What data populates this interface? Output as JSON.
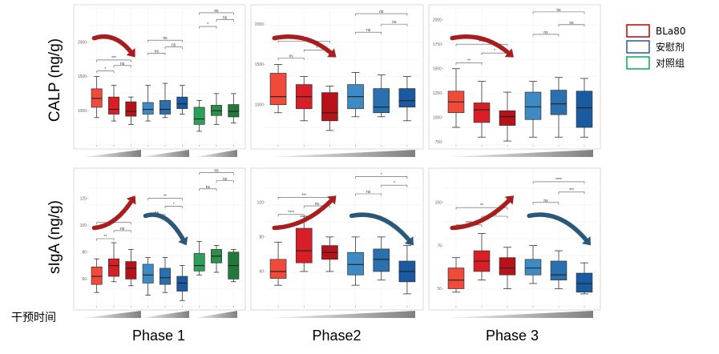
{
  "axis_labels": {
    "top": "CALP (ng/g)",
    "bottom": "sIgA (ng/g)"
  },
  "phases": [
    "Phase 1",
    "Phase2",
    "Phase 3"
  ],
  "legend": [
    {
      "label": "BLa80",
      "color": "#c00000"
    },
    {
      "label": "安慰剂",
      "color": "#2f5597"
    },
    {
      "label": "对照组",
      "color": "#00b050"
    }
  ],
  "intervention_label": "干预时间",
  "colors": {
    "red_light": "#f04a3a",
    "red_mid": "#d81e26",
    "red_dark": "#b51219",
    "blue_light": "#3d8ac4",
    "blue_mid": "#2a6fae",
    "blue_dark": "#1a5aa0",
    "green_light": "#2ca05a",
    "green_mid": "#2b8f48",
    "green_dark": "#217a3a",
    "arrow_red": "#a81d1d",
    "arrow_blue": "#2a5878"
  },
  "chart_data": [
    {
      "id": "calp-phase1",
      "type": "box",
      "ylim": [
        500,
        2500
      ],
      "yticks": [
        1000,
        1500,
        2000
      ],
      "boxes": [
        {
          "color": "red_light",
          "min": 900,
          "q1": 1050,
          "median": 1180,
          "q3": 1320,
          "max": 1500
        },
        {
          "color": "red_mid",
          "min": 850,
          "q1": 950,
          "median": 1020,
          "q3": 1200,
          "max": 1370
        },
        {
          "color": "red_dark",
          "min": 800,
          "q1": 920,
          "median": 990,
          "q3": 1130,
          "max": 1200
        },
        {
          "color": "blue_light",
          "min": 850,
          "q1": 950,
          "median": 1020,
          "q3": 1120,
          "max": 1370
        },
        {
          "color": "blue_mid",
          "min": 900,
          "q1": 950,
          "median": 1020,
          "q3": 1150,
          "max": 1400
        },
        {
          "color": "blue_dark",
          "min": 950,
          "q1": 1030,
          "median": 1100,
          "q3": 1200,
          "max": 1370
        },
        {
          "color": "green_light",
          "min": 700,
          "q1": 800,
          "median": 880,
          "q3": 1050,
          "max": 1150
        },
        {
          "color": "green_mid",
          "min": 800,
          "q1": 930,
          "median": 1000,
          "q3": 1080,
          "max": 1250
        },
        {
          "color": "green_dark",
          "min": 820,
          "q1": 910,
          "median": 990,
          "q3": 1090,
          "max": 1250
        }
      ],
      "sig": [
        {
          "a": 0,
          "b": 1,
          "label": "*",
          "y": 1580
        },
        {
          "a": 1,
          "b": 2,
          "label": "ns",
          "y": 1660
        },
        {
          "a": 0,
          "b": 2,
          "label": "***",
          "y": 1740
        },
        {
          "a": 3,
          "b": 4,
          "label": "ns",
          "y": 1840
        },
        {
          "a": 4,
          "b": 5,
          "label": "ns",
          "y": 1930
        },
        {
          "a": 3,
          "b": 5,
          "label": "ns",
          "y": 2030
        },
        {
          "a": 6,
          "b": 7,
          "label": "*",
          "y": 2230
        },
        {
          "a": 7,
          "b": 8,
          "label": "ns",
          "y": 2330
        },
        {
          "a": 6,
          "b": 8,
          "label": "ns",
          "y": 2430
        }
      ],
      "arrows": [
        {
          "dir": "down",
          "color": "arrow_red",
          "from": 0,
          "to": 2
        }
      ]
    },
    {
      "id": "calp-phase2",
      "type": "box",
      "ylim": [
        500,
        2200
      ],
      "yticks": [
        1000,
        1500,
        2000
      ],
      "boxes": [
        {
          "color": "red_light",
          "min": 900,
          "q1": 1000,
          "median": 1100,
          "q3": 1390,
          "max": 1500
        },
        {
          "color": "red_mid",
          "min": 800,
          "q1": 950,
          "median": 1100,
          "q3": 1250,
          "max": 1350
        },
        {
          "color": "red_dark",
          "min": 680,
          "q1": 800,
          "median": 900,
          "q3": 1150,
          "max": 1230
        },
        {
          "color": "blue_light",
          "min": 850,
          "q1": 950,
          "median": 1100,
          "q3": 1250,
          "max": 1400
        },
        {
          "color": "blue_mid",
          "min": 850,
          "q1": 900,
          "median": 970,
          "q3": 1200,
          "max": 1370
        },
        {
          "color": "blue_dark",
          "min": 800,
          "q1": 970,
          "median": 1050,
          "q3": 1200,
          "max": 1350
        }
      ],
      "sig": [
        {
          "a": 0,
          "b": 1,
          "label": "ns",
          "y": 1580
        },
        {
          "a": 1,
          "b": 2,
          "label": "*",
          "y": 1680
        },
        {
          "a": 0,
          "b": 2,
          "label": "**",
          "y": 1790
        },
        {
          "a": 3,
          "b": 4,
          "label": "ns",
          "y": 1900
        },
        {
          "a": 4,
          "b": 5,
          "label": "ns",
          "y": 2000
        },
        {
          "a": 3,
          "b": 5,
          "label": "ns",
          "y": 2130
        }
      ],
      "arrows": [
        {
          "dir": "down",
          "color": "arrow_red",
          "from": 0,
          "to": 2
        }
      ]
    },
    {
      "id": "calp-phase3",
      "type": "box",
      "ylim": [
        720,
        2120
      ],
      "yticks": [
        750,
        1000,
        1250,
        1500,
        1750,
        2000
      ],
      "boxes": [
        {
          "color": "red_light",
          "min": 900,
          "q1": 1050,
          "median": 1160,
          "q3": 1270,
          "max": 1500
        },
        {
          "color": "red_mid",
          "min": 800,
          "q1": 950,
          "median": 1080,
          "q3": 1150,
          "max": 1370
        },
        {
          "color": "red_dark",
          "min": 760,
          "q1": 920,
          "median": 1010,
          "q3": 1070,
          "max": 1260
        },
        {
          "color": "blue_light",
          "min": 800,
          "q1": 980,
          "median": 1110,
          "q3": 1260,
          "max": 1370
        },
        {
          "color": "blue_mid",
          "min": 800,
          "q1": 1030,
          "median": 1140,
          "q3": 1280,
          "max": 1410
        },
        {
          "color": "blue_dark",
          "min": 800,
          "q1": 900,
          "median": 1100,
          "q3": 1270,
          "max": 1400
        }
      ],
      "sig": [
        {
          "a": 0,
          "b": 1,
          "label": "**",
          "y": 1560
        },
        {
          "a": 1,
          "b": 2,
          "label": "*",
          "y": 1660
        },
        {
          "a": 0,
          "b": 2,
          "label": "****",
          "y": 1750
        },
        {
          "a": 3,
          "b": 4,
          "label": "ns",
          "y": 1850
        },
        {
          "a": 4,
          "b": 5,
          "label": "ns",
          "y": 1950
        },
        {
          "a": 3,
          "b": 5,
          "label": "ns",
          "y": 2080
        }
      ],
      "arrows": [
        {
          "dir": "down",
          "color": "arrow_red",
          "from": 0,
          "to": 2
        }
      ]
    },
    {
      "id": "siga-phase1",
      "type": "box",
      "ylim": [
        40,
        140
      ],
      "yticks": [
        60,
        80,
        100,
        120
      ],
      "boxes": [
        {
          "color": "red_light",
          "min": 50,
          "q1": 56,
          "median": 62,
          "q3": 69,
          "max": 75
        },
        {
          "color": "red_mid",
          "min": 58,
          "q1": 62,
          "median": 70,
          "q3": 75,
          "max": 87
        },
        {
          "color": "red_dark",
          "min": 55,
          "q1": 60,
          "median": 68,
          "q3": 73,
          "max": 82
        },
        {
          "color": "blue_light",
          "min": 48,
          "q1": 57,
          "median": 63,
          "q3": 71,
          "max": 76
        },
        {
          "color": "blue_mid",
          "min": 50,
          "q1": 56,
          "median": 61,
          "q3": 68,
          "max": 76
        },
        {
          "color": "blue_dark",
          "min": 44,
          "q1": 51,
          "median": 57,
          "q3": 62,
          "max": 70
        },
        {
          "color": "green_light",
          "min": 63,
          "q1": 66,
          "median": 70,
          "q3": 79,
          "max": 88
        },
        {
          "color": "green_mid",
          "min": 65,
          "q1": 72,
          "median": 77,
          "q3": 82,
          "max": 85
        },
        {
          "color": "green_dark",
          "min": 58,
          "q1": 60,
          "median": 70,
          "q3": 80,
          "max": 82
        }
      ],
      "sig": [
        {
          "a": 0,
          "b": 1,
          "label": "**",
          "y": 90
        },
        {
          "a": 1,
          "b": 2,
          "label": "ns",
          "y": 96
        },
        {
          "a": 0,
          "b": 2,
          "label": "ns",
          "y": 102
        },
        {
          "a": 3,
          "b": 4,
          "label": "ns",
          "y": 108
        },
        {
          "a": 4,
          "b": 5,
          "label": "*",
          "y": 114
        },
        {
          "a": 3,
          "b": 5,
          "label": "**",
          "y": 120
        },
        {
          "a": 6,
          "b": 7,
          "label": "ns",
          "y": 127
        },
        {
          "a": 7,
          "b": 8,
          "label": "ns",
          "y": 133
        },
        {
          "a": 6,
          "b": 8,
          "label": "ns",
          "y": 139
        }
      ],
      "arrows": [
        {
          "dir": "up",
          "color": "arrow_red",
          "from": 0,
          "to": 2
        },
        {
          "dir": "down",
          "color": "arrow_blue",
          "from": 3,
          "to": 5
        }
      ]
    },
    {
      "id": "siga-phase2",
      "type": "box",
      "ylim": [
        40,
        118
      ],
      "yticks": [
        60,
        80,
        100
      ],
      "boxes": [
        {
          "color": "red_light",
          "min": 52,
          "q1": 56,
          "median": 60,
          "q3": 67,
          "max": 77
        },
        {
          "color": "red_mid",
          "min": 60,
          "q1": 65,
          "median": 72,
          "q3": 85,
          "max": 92
        },
        {
          "color": "red_dark",
          "min": 60,
          "q1": 67,
          "median": 71,
          "q3": 75,
          "max": 80
        },
        {
          "color": "blue_light",
          "min": 52,
          "q1": 58,
          "median": 64,
          "q3": 71,
          "max": 80
        },
        {
          "color": "blue_mid",
          "min": 55,
          "q1": 60,
          "median": 67,
          "q3": 73,
          "max": 80
        },
        {
          "color": "blue_dark",
          "min": 47,
          "q1": 54,
          "median": 60,
          "q3": 66,
          "max": 75
        }
      ],
      "sig": [
        {
          "a": 0,
          "b": 1,
          "label": "****",
          "y": 93
        },
        {
          "a": 1,
          "b": 2,
          "label": "ns",
          "y": 98
        },
        {
          "a": 0,
          "b": 2,
          "label": "***",
          "y": 103
        },
        {
          "a": 3,
          "b": 4,
          "label": "ns",
          "y": 105
        },
        {
          "a": 4,
          "b": 5,
          "label": "*",
          "y": 110
        },
        {
          "a": 3,
          "b": 5,
          "label": "*",
          "y": 115
        }
      ],
      "arrows": [
        {
          "dir": "up",
          "color": "arrow_red",
          "from": 0,
          "to": 2
        },
        {
          "dir": "down",
          "color": "arrow_blue",
          "from": 3,
          "to": 5
        }
      ]
    },
    {
      "id": "siga-phase3",
      "type": "box",
      "ylim": [
        40,
        118
      ],
      "yticks": [
        50,
        75,
        100
      ],
      "boxes": [
        {
          "color": "red_light",
          "min": 48,
          "q1": 50,
          "median": 55,
          "q3": 62,
          "max": 68
        },
        {
          "color": "red_mid",
          "min": 55,
          "q1": 60,
          "median": 66,
          "q3": 72,
          "max": 82
        },
        {
          "color": "red_dark",
          "min": 50,
          "q1": 58,
          "median": 62,
          "q3": 68,
          "max": 74
        },
        {
          "color": "blue_light",
          "min": 53,
          "q1": 58,
          "median": 62,
          "q3": 67,
          "max": 75
        },
        {
          "color": "blue_mid",
          "min": 50,
          "q1": 55,
          "median": 58,
          "q3": 66,
          "max": 72
        },
        {
          "color": "blue_dark",
          "min": 47,
          "q1": 48,
          "median": 53,
          "q3": 59,
          "max": 65
        }
      ],
      "sig": [
        {
          "a": 0,
          "b": 1,
          "label": "****",
          "y": 87
        },
        {
          "a": 1,
          "b": 2,
          "label": "ns",
          "y": 92
        },
        {
          "a": 0,
          "b": 2,
          "label": "**",
          "y": 97
        },
        {
          "a": 3,
          "b": 4,
          "label": "ns",
          "y": 100
        },
        {
          "a": 4,
          "b": 5,
          "label": "***",
          "y": 106
        },
        {
          "a": 3,
          "b": 5,
          "label": "****",
          "y": 112
        }
      ],
      "arrows": [
        {
          "dir": "up",
          "color": "arrow_red",
          "from": 0,
          "to": 2
        },
        {
          "dir": "down",
          "color": "arrow_blue",
          "from": 3,
          "to": 5
        }
      ]
    }
  ]
}
